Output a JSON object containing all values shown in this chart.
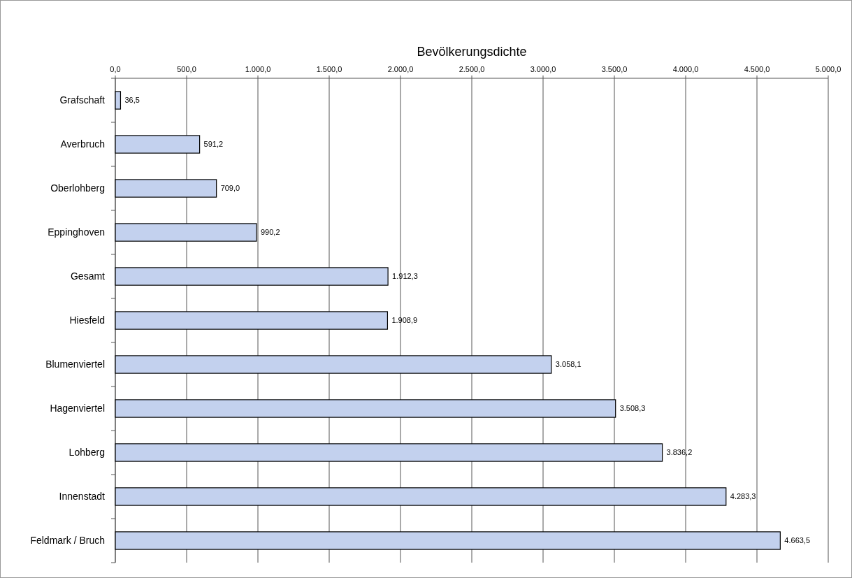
{
  "chart_data": {
    "type": "bar",
    "title": "Bevölkerungsdichte",
    "orientation": "horizontal",
    "categories": [
      "Grafschaft",
      "Averbruch",
      "Oberlohberg",
      "Eppinghoven",
      "Gesamt",
      "Hiesfeld",
      "Blumenviertel",
      "Hagenviertel",
      "Lohberg",
      "Innenstadt",
      "Feldmark / Bruch"
    ],
    "values": [
      36.5,
      591.2,
      709.0,
      990.2,
      1912.3,
      1908.9,
      3058.1,
      3508.3,
      3836.2,
      4283.3,
      4663.5
    ],
    "value_labels": [
      "36,5",
      "591,2",
      "709,0",
      "990,2",
      "1.912,3",
      "1.908,9",
      "3.058,1",
      "3.508,3",
      "3.836,2",
      "4.283,3",
      "4.663,5"
    ],
    "color": "#c3d1ee",
    "xlim": [
      0,
      5000
    ],
    "xticks": [
      {
        "value": 0,
        "label": "0,0"
      },
      {
        "value": 500,
        "label": "500,0"
      },
      {
        "value": 1000,
        "label": "1.000,0"
      },
      {
        "value": 1500,
        "label": "1.500,0"
      },
      {
        "value": 2000,
        "label": "2.000,0"
      },
      {
        "value": 2500,
        "label": "2.500,0"
      },
      {
        "value": 3000,
        "label": "3.000,0"
      },
      {
        "value": 3500,
        "label": "3.500,0"
      },
      {
        "value": 4000,
        "label": "4.000,0"
      },
      {
        "value": 4500,
        "label": "4.500,0"
      },
      {
        "value": 5000,
        "label": "5.000,0"
      }
    ],
    "grid": "x"
  }
}
